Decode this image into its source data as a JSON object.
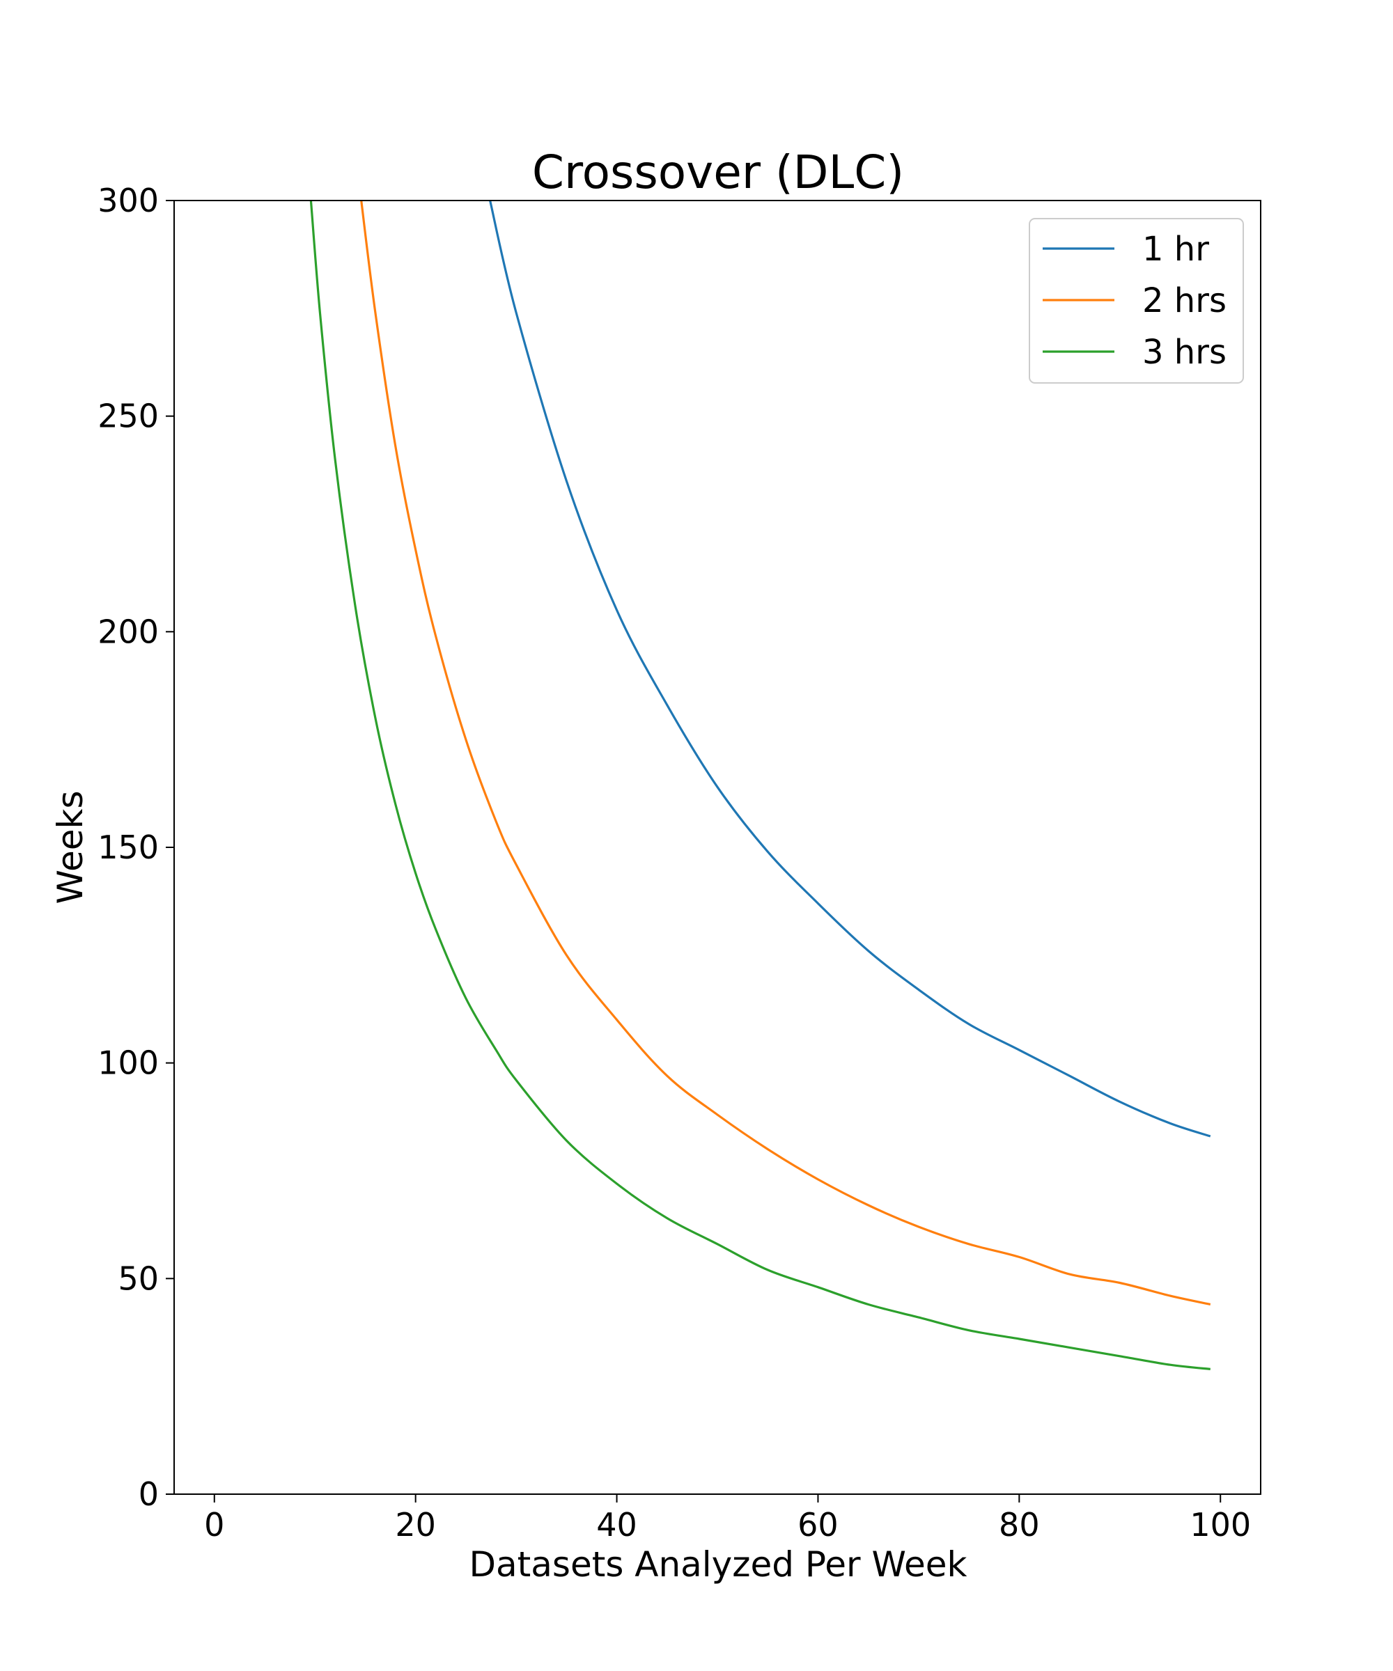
{
  "chart_data": {
    "type": "line",
    "title": "Crossover (DLC)",
    "xlabel": "Datasets Analyzed Per Week",
    "ylabel": "Weeks",
    "xlim": [
      -4,
      104
    ],
    "ylim": [
      0,
      300
    ],
    "xticks": [
      0,
      20,
      40,
      60,
      80,
      100
    ],
    "yticks": [
      0,
      50,
      100,
      150,
      200,
      250,
      300
    ],
    "grid": false,
    "legend_position": "top-right",
    "series": [
      {
        "name": "1 hr",
        "color": "#1f77b4",
        "x": [
          27.4,
          30,
          35,
          40,
          45,
          50,
          55,
          60,
          65,
          70,
          75,
          80,
          85,
          90,
          95,
          99
        ],
        "y": [
          300,
          274,
          235,
          205,
          183,
          164,
          149,
          137,
          126,
          117,
          109,
          103,
          97,
          91,
          86,
          83
        ]
      },
      {
        "name": "2 hrs",
        "color": "#ff7f0e",
        "x": [
          14.6,
          16,
          18,
          20,
          22,
          25,
          28,
          30,
          35,
          40,
          45,
          50,
          55,
          60,
          65,
          70,
          75,
          80,
          85,
          90,
          95,
          99
        ],
        "y": [
          300,
          274,
          243,
          219,
          199,
          175,
          156,
          146,
          125,
          110,
          97,
          88,
          80,
          73,
          67,
          62,
          58,
          55,
          51,
          49,
          46,
          44
        ]
      },
      {
        "name": "3 hrs",
        "color": "#2ca02c",
        "x": [
          9.6,
          10.5,
          12,
          14,
          16,
          18,
          20,
          22,
          25,
          28,
          30,
          35,
          40,
          45,
          50,
          55,
          60,
          65,
          70,
          75,
          80,
          85,
          90,
          95,
          99
        ],
        "y": [
          300,
          274,
          240,
          206,
          180,
          160,
          144,
          131,
          115,
          103,
          96,
          82,
          72,
          64,
          58,
          52,
          48,
          44,
          41,
          38,
          36,
          34,
          32,
          30,
          29
        ]
      }
    ]
  }
}
